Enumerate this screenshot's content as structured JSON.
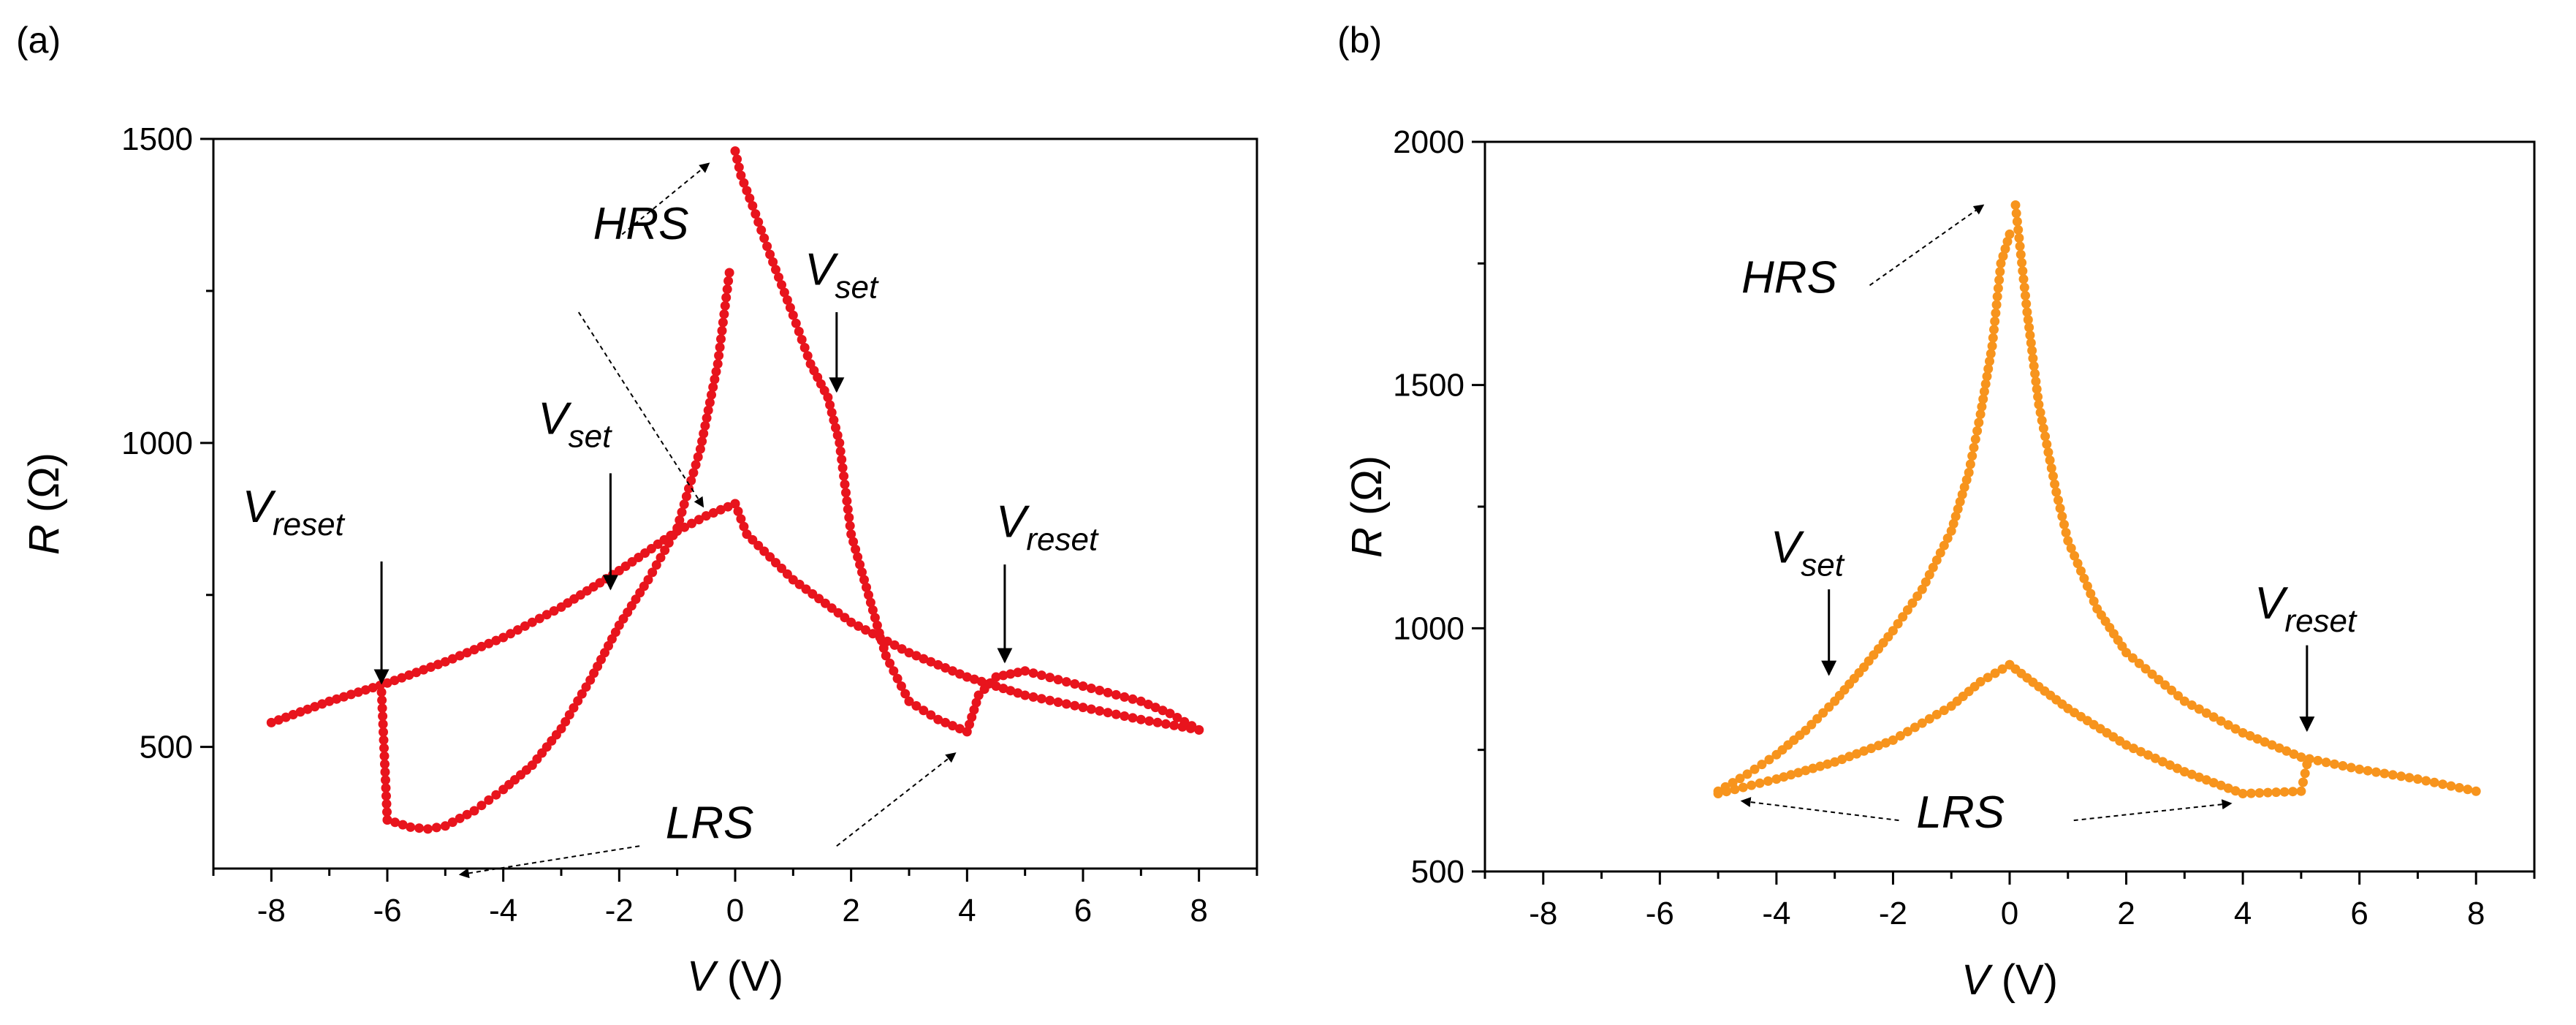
{
  "chart_data": [
    {
      "panel_label": "(a)",
      "type": "scatter",
      "color": "#e8141d",
      "xlabel_var": "V",
      "xlabel_unit": " (V)",
      "ylabel_var": "R",
      "ylabel_unit": " (Ω)",
      "xlim": [
        -9,
        9
      ],
      "ylim": [
        300,
        1500
      ],
      "xticks": [
        -8,
        -6,
        -4,
        -2,
        0,
        2,
        4,
        6,
        8
      ],
      "yticks": [
        500,
        1000,
        1500
      ],
      "x_tick_labels": [
        "-8",
        "-6",
        "-4",
        "-2",
        "0",
        "2",
        "4",
        "6",
        "8"
      ],
      "y_tick_labels": [
        "500",
        "1000",
        "1500"
      ],
      "series": [
        {
          "name": "outer loop lower branch (-8 to 0 V)",
          "x": [
            -8,
            -7,
            -6,
            -5,
            -4,
            -3,
            -2,
            -1,
            -0.5,
            0
          ],
          "y": [
            540,
            575,
            605,
            640,
            680,
            730,
            790,
            855,
            880,
            900
          ]
        },
        {
          "name": "descending from 0 V to 8 V",
          "x": [
            0,
            0.2,
            1,
            2,
            3,
            4,
            5,
            6,
            7,
            8
          ],
          "y": [
            900,
            850,
            775,
            705,
            655,
            615,
            585,
            565,
            545,
            528
          ]
        },
        {
          "name": "return branch 8 V to 4 V",
          "x": [
            8,
            7.5,
            7,
            6,
            5,
            4.5,
            4.2
          ],
          "y": [
            528,
            555,
            575,
            600,
            625,
            615,
            585
          ]
        },
        {
          "name": "LRS dip near 4 V",
          "x": [
            4.2,
            4,
            3.5,
            3
          ],
          "y": [
            585,
            525,
            545,
            575
          ]
        },
        {
          "name": "HRS branch 3 V to 0 V",
          "x": [
            3,
            2.6,
            2,
            1.8,
            1.6,
            1.3,
            1,
            0.6,
            0.3,
            0.1,
            0
          ],
          "y": [
            575,
            650,
            850,
            1000,
            1075,
            1130,
            1210,
            1310,
            1390,
            1440,
            1480
          ]
        },
        {
          "name": "HRS branch 0 V to -6 V",
          "x": [
            -0.1,
            -0.3,
            -0.6,
            -1,
            -1.5,
            -2,
            -2.5,
            -3,
            -3.5,
            -4,
            -4.5,
            -5,
            -5.3,
            -5.6,
            -6
          ],
          "y": [
            1280,
            1130,
            990,
            860,
            775,
            700,
            610,
            530,
            470,
            430,
            395,
            370,
            365,
            368,
            380
          ]
        },
        {
          "name": "reset jump at -6 V",
          "x": [
            -6,
            -6.1
          ],
          "y": [
            380,
            590
          ]
        }
      ],
      "annotations": [
        {
          "id": "hrs",
          "text": "HRS",
          "sub": "",
          "label_at": [
            -2.45,
            1335
          ],
          "arrow_from": [
            -1.95,
            1343
          ],
          "arrow_to": [
            -0.45,
            1460
          ],
          "style": "dashed"
        },
        {
          "id": "hrs-to-loop",
          "text": "",
          "sub": "",
          "label_at": [
            -2.7,
            1215
          ],
          "arrow_from": [
            -2.7,
            1215
          ],
          "arrow_to": [
            -0.55,
            895
          ],
          "style": "dashed"
        },
        {
          "id": "vset-left",
          "text": "V",
          "sub": "set",
          "label_at": [
            -3.4,
            1015
          ],
          "arrow_from": [
            -2.15,
            950
          ],
          "arrow_to": [
            -2.15,
            760
          ],
          "style": "solid"
        },
        {
          "id": "vset-right",
          "text": "V",
          "sub": "set",
          "label_at": [
            1.2,
            1260
          ],
          "arrow_from": [
            1.75,
            1215
          ],
          "arrow_to": [
            1.75,
            1085
          ],
          "style": "solid"
        },
        {
          "id": "vreset-left",
          "text": "V",
          "sub": "reset",
          "label_at": [
            -8.5,
            870
          ],
          "arrow_from": [
            -6.1,
            805
          ],
          "arrow_to": [
            -6.1,
            605
          ],
          "style": "solid"
        },
        {
          "id": "vreset-right",
          "text": "V",
          "sub": "reset",
          "label_at": [
            4.5,
            845
          ],
          "arrow_from": [
            4.65,
            800
          ],
          "arrow_to": [
            4.65,
            640
          ],
          "style": "solid"
        },
        {
          "id": "lrs",
          "text": "LRS",
          "sub": "",
          "label_at": [
            -1.2,
            350
          ],
          "arrow_from": [
            -1.65,
            337
          ],
          "arrow_to": [
            -4.75,
            290
          ],
          "style": "dashed"
        },
        {
          "id": "lrs-right",
          "text": "",
          "sub": "",
          "label_at": [
            1.75,
            337
          ],
          "arrow_from": [
            1.75,
            337
          ],
          "arrow_to": [
            3.8,
            490
          ],
          "style": "dashed"
        }
      ]
    },
    {
      "panel_label": "(b)",
      "type": "scatter",
      "color": "#f7941d",
      "xlabel_var": "V",
      "xlabel_unit": " (V)",
      "ylabel_var": "R",
      "ylabel_unit": " (Ω)",
      "xlim": [
        -9,
        9
      ],
      "ylim": [
        500,
        2000
      ],
      "xticks": [
        -8,
        -6,
        -4,
        -2,
        0,
        2,
        4,
        6,
        8
      ],
      "yticks": [
        500,
        1000,
        1500,
        2000
      ],
      "x_tick_labels": [
        "-8",
        "-6",
        "-4",
        "-2",
        "0",
        "2",
        "4",
        "6",
        "8"
      ],
      "y_tick_labels": [
        "500",
        "1000",
        "1500",
        "2000"
      ],
      "series": [
        {
          "name": "upper (HRS) branch left",
          "x": [
            -5,
            -4.5,
            -4,
            -3.5,
            -3,
            -2.5,
            -2,
            -1.5,
            -1,
            -0.7,
            -0.5,
            -0.3,
            -0.15,
            0
          ],
          "y": [
            665,
            700,
            740,
            790,
            850,
            920,
            995,
            1080,
            1200,
            1320,
            1440,
            1580,
            1750,
            1810
          ]
        },
        {
          "name": "upper (HRS) branch right",
          "x": [
            0.1,
            0.3,
            0.5,
            0.8,
            1,
            1.5,
            2,
            3,
            4,
            5,
            6,
            7,
            8
          ],
          "y": [
            1870,
            1650,
            1460,
            1280,
            1180,
            1040,
            950,
            850,
            785,
            735,
            710,
            690,
            665
          ]
        },
        {
          "name": "lower (LRS) branch left",
          "x": [
            -5,
            -4,
            -3,
            -2,
            -1,
            -0.5,
            0
          ],
          "y": [
            660,
            690,
            725,
            770,
            840,
            890,
            925
          ]
        },
        {
          "name": "lower (LRS) branch right",
          "x": [
            0,
            0.5,
            1,
            2,
            3,
            4,
            5,
            5.1
          ],
          "y": [
            925,
            880,
            835,
            760,
            705,
            660,
            665,
            720
          ]
        }
      ],
      "annotations": [
        {
          "id": "hrs",
          "text": "HRS",
          "sub": "",
          "label_at": [
            -4.6,
            1690
          ],
          "arrow_from": [
            -2.4,
            1705
          ],
          "arrow_to": [
            -0.45,
            1870
          ],
          "style": "dashed"
        },
        {
          "id": "vset",
          "text": "V",
          "sub": "set",
          "label_at": [
            -4.1,
            1135
          ],
          "arrow_from": [
            -3.1,
            1080
          ],
          "arrow_to": [
            -3.1,
            905
          ],
          "style": "solid"
        },
        {
          "id": "vreset",
          "text": "V",
          "sub": "reset",
          "label_at": [
            4.2,
            1020
          ],
          "arrow_from": [
            5.1,
            965
          ],
          "arrow_to": [
            5.1,
            790
          ],
          "style": "solid"
        },
        {
          "id": "lrs",
          "text": "LRS",
          "sub": "",
          "label_at": [
            -1.6,
            590
          ],
          "arrow_from": [
            -1.9,
            605
          ],
          "arrow_to": [
            -4.6,
            645
          ],
          "style": "dashed"
        },
        {
          "id": "lrs-right",
          "text": "",
          "sub": "",
          "label_at": [
            1.1,
            605
          ],
          "arrow_from": [
            1.1,
            605
          ],
          "arrow_to": [
            3.8,
            640
          ],
          "style": "dashed"
        }
      ]
    }
  ]
}
